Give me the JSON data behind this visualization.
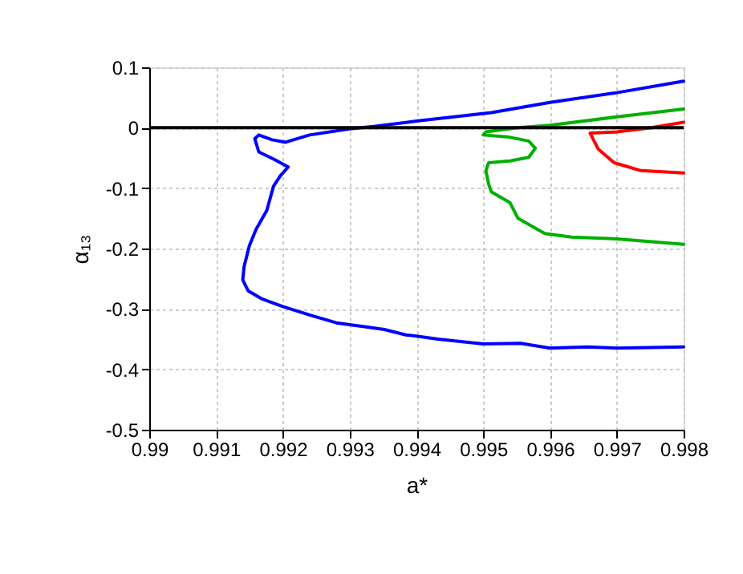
{
  "chart_data": {
    "type": "line",
    "xlabel": "a*",
    "ylabel": "α₁₃",
    "xlim": [
      0.99,
      0.998
    ],
    "xticks": [
      0.99,
      0.991,
      0.992,
      0.993,
      0.994,
      0.995,
      0.996,
      0.997,
      0.998
    ],
    "ylim": [
      -0.5,
      0.1
    ],
    "yticks": [
      -0.5,
      -0.4,
      -0.3,
      -0.2,
      -0.1,
      0,
      0.1
    ],
    "grid": true,
    "line_style": "solid",
    "marker": "none",
    "ref_lines": [
      {
        "axis": "y",
        "value": 0,
        "color": "#000000",
        "line_style": "solid"
      }
    ],
    "series": [
      {
        "color": "#0000ff",
        "x": [
          0.998,
          0.997,
          0.996,
          0.99512,
          0.994,
          0.99336,
          0.993,
          0.9924,
          0.99204,
          0.99184,
          0.99164,
          0.99158,
          0.99164,
          0.99188,
          0.99208,
          0.99196,
          0.99186,
          0.99176,
          0.9916,
          0.9915,
          0.99142,
          0.9914,
          0.99148,
          0.99168,
          0.992,
          0.9924,
          0.9928,
          0.9932,
          0.99352,
          0.99384,
          0.994,
          0.99432,
          0.995,
          0.99556,
          0.996,
          0.99656,
          0.997,
          0.998
        ],
        "values": [
          0.077,
          0.058,
          0.042,
          0.025,
          0.011,
          0.002,
          -0.002,
          -0.012,
          -0.024,
          -0.02,
          -0.012,
          -0.018,
          -0.04,
          -0.053,
          -0.065,
          -0.08,
          -0.097,
          -0.137,
          -0.168,
          -0.195,
          -0.23,
          -0.252,
          -0.27,
          -0.283,
          -0.296,
          -0.31,
          -0.323,
          -0.329,
          -0.334,
          -0.343,
          -0.345,
          -0.35,
          -0.358,
          -0.357,
          -0.365,
          -0.363,
          -0.365,
          -0.363
        ]
      },
      {
        "color": "#00b000",
        "x": [
          0.998,
          0.997,
          0.996,
          0.99552,
          0.99504,
          0.995,
          0.99536,
          0.99568,
          0.99578,
          0.99568,
          0.9954,
          0.99508,
          0.99504,
          0.99508,
          0.99512,
          0.9954,
          0.99552,
          0.99592,
          0.99632,
          0.997,
          0.998
        ],
        "values": [
          0.031,
          0.018,
          0.004,
          0,
          -0.007,
          -0.012,
          -0.015,
          -0.022,
          -0.034,
          -0.049,
          -0.055,
          -0.058,
          -0.071,
          -0.093,
          -0.106,
          -0.124,
          -0.15,
          -0.175,
          -0.181,
          -0.184,
          -0.193
        ]
      },
      {
        "color": "#ff0000",
        "x": [
          0.998,
          0.99752,
          0.997,
          0.9966,
          0.99672,
          0.99696,
          0.99736,
          0.998
        ],
        "values": [
          0.009,
          0,
          -0.007,
          -0.009,
          -0.035,
          -0.058,
          -0.071,
          -0.075
        ]
      }
    ]
  }
}
